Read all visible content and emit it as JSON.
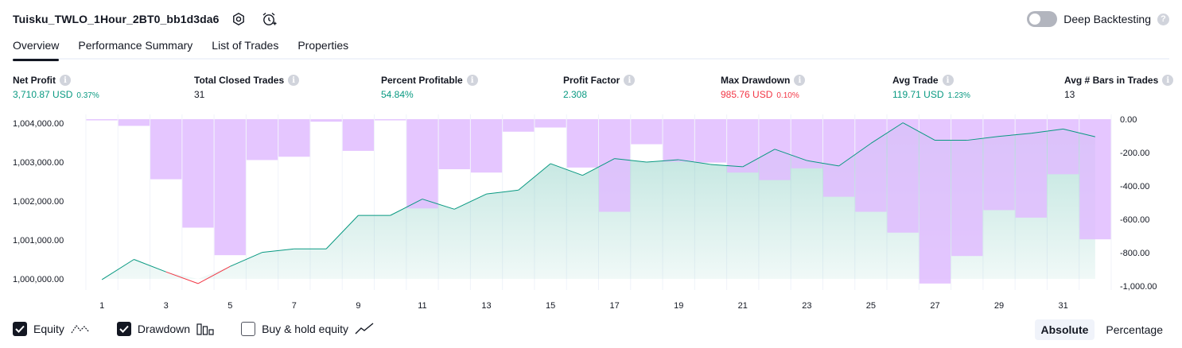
{
  "header": {
    "strategy_name": "Tuisku_TWLO_1Hour_2BT0_bb1d3da6",
    "settings_icon": "settings-icon",
    "alert_icon": "alarm-clock-plus-icon"
  },
  "deep_backtesting": {
    "label": "Deep Backtesting",
    "enabled": false,
    "help": "?"
  },
  "tabs": [
    {
      "label": "Overview",
      "active": true
    },
    {
      "label": "Performance Summary",
      "active": false
    },
    {
      "label": "List of Trades",
      "active": false
    },
    {
      "label": "Properties",
      "active": false
    }
  ],
  "info_glyph": "i",
  "metrics": {
    "net_profit": {
      "label": "Net Profit",
      "value": "3,710.87 USD",
      "pct": "0.37%",
      "color": "#089981"
    },
    "total_closed_trades": {
      "label": "Total Closed Trades",
      "value": "31"
    },
    "percent_profitable": {
      "label": "Percent Profitable",
      "value": "54.84%",
      "color": "#089981"
    },
    "profit_factor": {
      "label": "Profit Factor",
      "value": "2.308",
      "color": "#089981"
    },
    "max_drawdown": {
      "label": "Max Drawdown",
      "value": "985.76 USD",
      "pct": "0.10%",
      "color": "#f23645"
    },
    "avg_trade": {
      "label": "Avg Trade",
      "value": "119.71 USD",
      "pct": "1.23%",
      "color": "#089981"
    },
    "avg_bars": {
      "label": "Avg # Bars in Trades",
      "value": "13"
    }
  },
  "chart_data": {
    "type": "line",
    "x": [
      1,
      2,
      3,
      4,
      5,
      6,
      7,
      8,
      9,
      10,
      11,
      12,
      13,
      14,
      15,
      16,
      17,
      18,
      19,
      20,
      21,
      22,
      23,
      24,
      25,
      26,
      27,
      28,
      29,
      30,
      31,
      32
    ],
    "x_tick_labels": [
      "1",
      "3",
      "5",
      "7",
      "9",
      "11",
      "13",
      "15",
      "17",
      "19",
      "21",
      "23",
      "25",
      "27",
      "29",
      "31"
    ],
    "left_axis": {
      "min": 999800,
      "max": 1004100,
      "ticks": [
        1004000,
        1003000,
        1002000,
        1001000,
        1000000
      ],
      "tick_labels": [
        "1,004,000.00",
        "1,003,000.00",
        "1,002,000.00",
        "1,001,000.00",
        "1,000,000.00"
      ]
    },
    "right_axis": {
      "min": -1040,
      "max": 20,
      "ticks": [
        0,
        -200,
        -400,
        -600,
        -800,
        -1000
      ],
      "tick_labels": [
        "0.00",
        "-200.00",
        "-400.00",
        "-600.00",
        "-800.00",
        "-1,000.00"
      ]
    },
    "series": [
      {
        "name": "Equity",
        "axis": "left",
        "color": "#089981",
        "values": [
          999980,
          1000500,
          1000180,
          999880,
          1000320,
          1000680,
          1000770,
          1000770,
          1001630,
          1001630,
          1002050,
          1001790,
          1002180,
          1002280,
          1002960,
          1002660,
          1003090,
          1003000,
          1003060,
          1002940,
          1002880,
          1003330,
          1003040,
          1002900,
          1003480,
          1004010,
          1003560,
          1003560,
          1003660,
          1003740,
          1003850,
          1003650
        ]
      },
      {
        "name": "Drawdown",
        "axis": "right",
        "color": "#e1bcff",
        "values": [
          -5,
          -40,
          -360,
          -650,
          -815,
          -245,
          -225,
          -15,
          -190,
          0,
          -535,
          -300,
          -320,
          -75,
          -50,
          -290,
          -555,
          -150,
          -255,
          -260,
          -320,
          -365,
          -295,
          -465,
          -555,
          -680,
          -985,
          -820,
          -545,
          -590,
          -330,
          -720
        ]
      }
    ],
    "grid": "vertical",
    "legend": [
      {
        "name": "Equity",
        "checked": true,
        "icon": "equity-line-icon"
      },
      {
        "name": "Drawdown",
        "checked": true,
        "icon": "drawdown-bars-icon"
      },
      {
        "name": "Buy & hold equity",
        "checked": false,
        "icon": "buy-hold-line-icon"
      }
    ]
  },
  "mode": {
    "absolute_label": "Absolute",
    "percentage_label": "Percentage",
    "selected": "Absolute"
  }
}
